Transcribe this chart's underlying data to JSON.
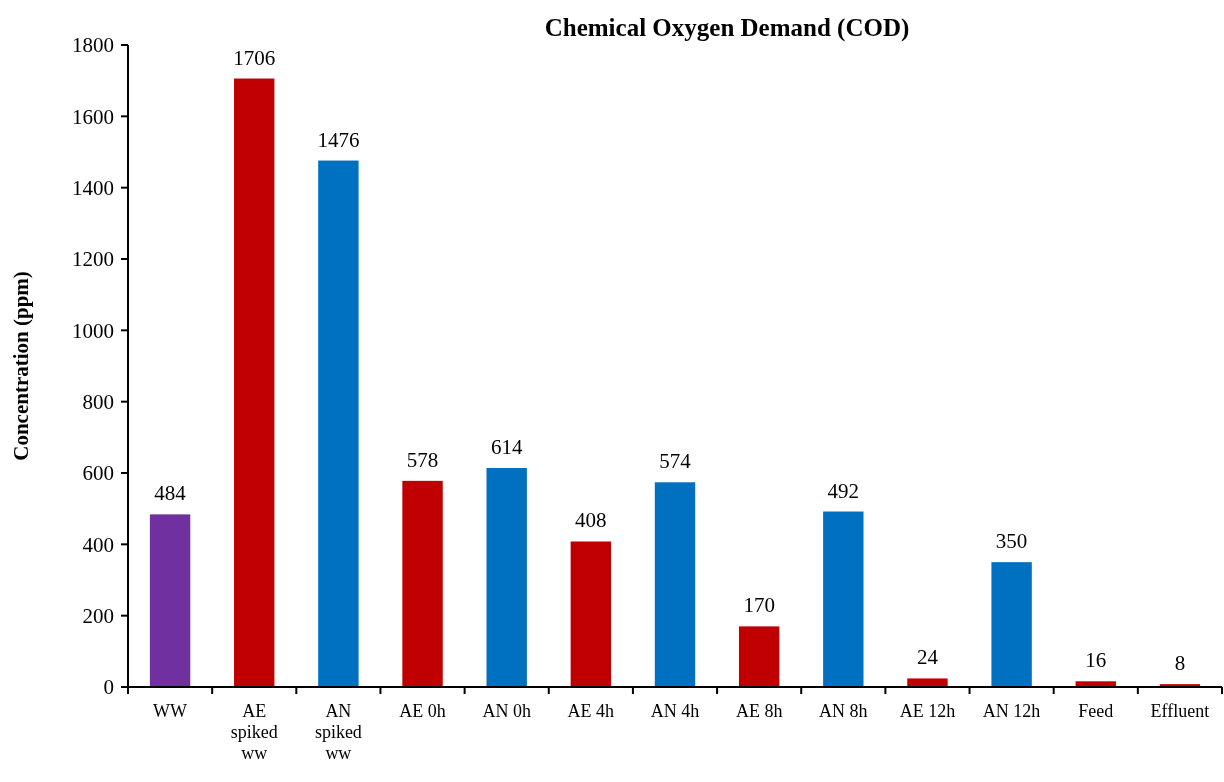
{
  "chart_data": {
    "type": "bar",
    "title": "Chemical Oxygen Demand (COD)",
    "ylabel": "Concentration (ppm)",
    "categories": [
      "WW",
      "AE spiked ww",
      "AN spiked ww",
      "AE 0h",
      "AN 0h",
      "AE 4h",
      "AN 4h",
      "AE 8h",
      "AN 8h",
      "AE 12h",
      "AN 12h",
      "Feed",
      "Effluent"
    ],
    "values": [
      484,
      1706,
      1476,
      578,
      614,
      408,
      574,
      170,
      492,
      24,
      350,
      16,
      8
    ],
    "colors": [
      "#7030a0",
      "#c00000",
      "#0070c0",
      "#c00000",
      "#0070c0",
      "#c00000",
      "#0070c0",
      "#c00000",
      "#0070c0",
      "#c00000",
      "#0070c0",
      "#c00000",
      "#c00000"
    ],
    "ylim": [
      0,
      1800
    ],
    "yticks": [
      0,
      200,
      400,
      600,
      800,
      1000,
      1200,
      1400,
      1600,
      1800
    ],
    "data_labels": true,
    "grid": false
  }
}
